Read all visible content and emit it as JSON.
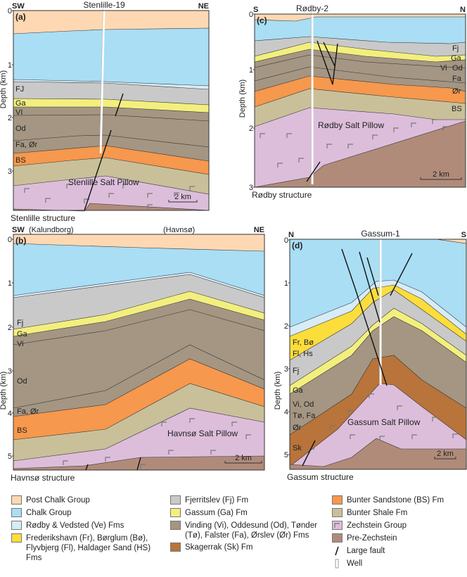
{
  "colors": {
    "post_chalk": "#fdd8b3",
    "chalk": "#a9def4",
    "rodby": "#d7ecf8",
    "frederikshavn": "#fbdd3c",
    "fjerritslev": "#c9c9c9",
    "gassum": "#f3ef7e",
    "vinding": "#a49683",
    "skagerrak": "#b8743a",
    "bunter_sandstone": "#f6984d",
    "bunter_shale": "#c9c09a",
    "zechstein": "#dcbedb",
    "pre_zechstein": "#b08b7a"
  },
  "axis_label": "Depth (km)",
  "panels": {
    "a": {
      "tag": "(a)",
      "left_dir": "SW",
      "right_dir": "NE",
      "well": "Stenlille-19",
      "caption": "Stenlille structure",
      "salt": "Stenlille Salt Pillow",
      "scale": "2 km",
      "ticks": [
        "0",
        "1",
        "2",
        "3"
      ],
      "labels": [
        "FJ",
        "Ga",
        "VI",
        "Od",
        "Fa, Ør",
        "BS"
      ]
    },
    "b": {
      "tag": "(b)",
      "left_dir": "SW",
      "left_place": "(Kalundborg)",
      "mid_place": "(Havnsø)",
      "right_dir": "NE",
      "caption": "Havnsø structure",
      "salt": "Havnsø Salt Pillow",
      "scale": "2 km",
      "ticks": [
        "0",
        "1",
        "2",
        "3",
        "4",
        "5"
      ],
      "labels": [
        "Fj",
        "Ga",
        "Vi",
        "Od",
        "Fa, Ør",
        "BS"
      ]
    },
    "c": {
      "tag": "(c)",
      "left_dir": "S",
      "right_dir": "N",
      "well": "Rødby-2",
      "caption": "Rødby structure",
      "salt": "Rødby Salt Pillow",
      "scale": "2 km",
      "ticks": [
        "0",
        "1",
        "2",
        "3"
      ],
      "labels": [
        "Fj",
        "Ga",
        "Vi",
        "Od",
        "Fa",
        "Ør",
        "BS"
      ]
    },
    "d": {
      "tag": "(d)",
      "left_dir": "N",
      "right_dir": "S",
      "well": "Gassum-1",
      "caption": "Gassum structure",
      "salt": "Gassum Salt Pillow",
      "scale": "2 km",
      "ticks": [
        "0",
        "1",
        "2",
        "3",
        "4",
        "5"
      ],
      "labels": [
        "Fr, Bø",
        "Fl, Hs",
        "Fj",
        "Ga",
        "Vi, Od",
        "Tø, Fa",
        "Ør",
        "Sk"
      ]
    }
  },
  "legend": {
    "col1": [
      {
        "key": "post_chalk",
        "label": "Post Chalk Group"
      },
      {
        "key": "chalk",
        "label": "Chalk Group"
      },
      {
        "key": "rodby",
        "label": "Rødby & Vedsted (Ve) Fms"
      },
      {
        "key": "frederikshavn",
        "label": "Frederikshavn (Fr), Børglum (Bø), Flyvbjerg (Fl), Haldager Sand (HS) Fms"
      }
    ],
    "col2": [
      {
        "key": "fjerritslev",
        "label": "Fjerritslev (Fj) Fm"
      },
      {
        "key": "gassum",
        "label": "Gassum (Ga) Fm"
      },
      {
        "key": "vinding",
        "label": "Vinding (Vi), Oddesund (Od), Tønder (Tø), Falster (Fa), Ørslev (Ør) Fms"
      },
      {
        "key": "skagerrak",
        "label": "Skagerrak (Sk) Fm"
      }
    ],
    "col3": [
      {
        "key": "bunter_sandstone",
        "label": "Bunter Sandstone (BS) Fm"
      },
      {
        "key": "bunter_shale",
        "label": "Bunter Shale Fm"
      },
      {
        "key": "zechstein",
        "label": "Zechstein Group"
      },
      {
        "key": "pre_zechstein",
        "label": "Pre-Zechstein"
      },
      {
        "key": "fault",
        "label": "Large fault"
      },
      {
        "key": "well",
        "label": "Well"
      }
    ]
  }
}
